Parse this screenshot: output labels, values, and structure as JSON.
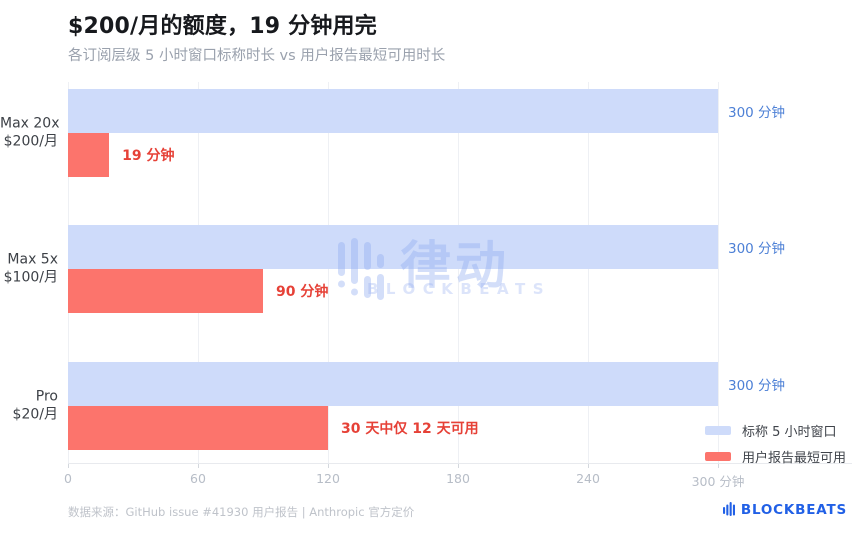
{
  "header": {
    "title": "$200/月的额度，19 分钟用完",
    "subtitle": "各订阅层级 5 小时窗口标称时长 vs 用户报告最短可用时长"
  },
  "chart_data": {
    "type": "bar",
    "orientation": "horizontal",
    "title": "$200/月的额度，19 分钟用完",
    "subtitle": "各订阅层级 5 小时窗口标称时长 vs 用户报告最短可用时长",
    "categories": [
      "Max 20x $200/月",
      "Max 5x $100/月",
      "Pro $20/月"
    ],
    "category_lines": [
      [
        "Max 20x",
        "$200/月"
      ],
      [
        "Max 5x",
        "$100/月"
      ],
      [
        "Pro",
        "$20/月"
      ]
    ],
    "series": [
      {
        "name": "标称 5 小时窗口",
        "color": "#cedbfa",
        "label_color": "#4d80d6",
        "values": [
          300,
          300,
          300
        ],
        "labels": [
          "300 分钟",
          "300 分钟",
          "300 分钟"
        ]
      },
      {
        "name": "用户报告最短可用",
        "color": "#fc746c",
        "label_color": "#e64137",
        "values": [
          19,
          90,
          120
        ],
        "labels": [
          "19 分钟",
          "90 分钟",
          "30 天中仅 12 天可用"
        ]
      }
    ],
    "xlim": [
      0,
      300
    ],
    "x_ticks": [
      0,
      60,
      120,
      180,
      240,
      300
    ],
    "x_tick_labels": [
      "0",
      "60",
      "120",
      "180",
      "240",
      "300 分钟"
    ],
    "x_unit": "分钟",
    "grid": true,
    "legend_position": "bottom-right"
  },
  "watermark": {
    "cn_text": "律动",
    "en_text": "BLOCKBEATS"
  },
  "footer": {
    "source": "数据来源：GitHub issue #41930 用户报告 | Anthropic 官方定价",
    "logo_text": "BLOCKBEATS"
  }
}
